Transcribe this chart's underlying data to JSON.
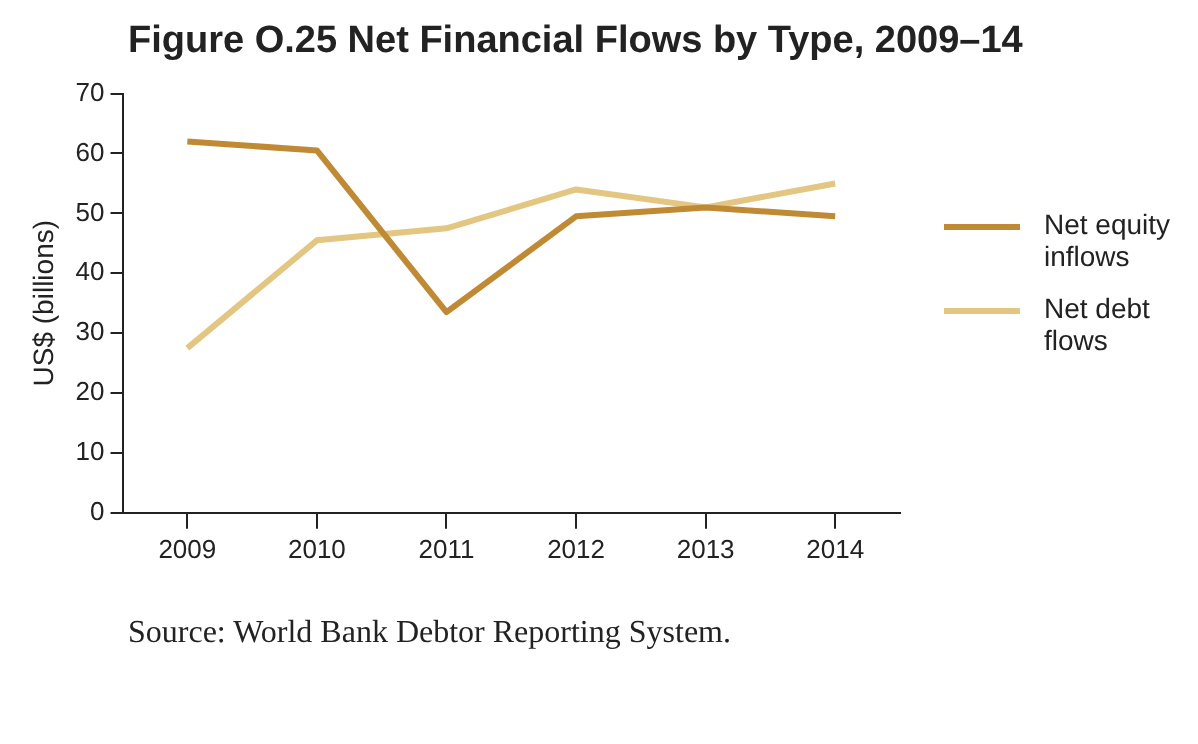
{
  "chart_data": {
    "type": "line",
    "title": "Figure O.25  Net Financial Flows by Type, 2009–14",
    "ylabel": "US$ (billions)",
    "categories": [
      "2009",
      "2010",
      "2011",
      "2012",
      "2013",
      "2014"
    ],
    "series": [
      {
        "name": "Net equity inflows",
        "color": "#c08a34",
        "values": [
          62,
          60.5,
          33.5,
          49.5,
          51,
          49.5
        ]
      },
      {
        "name": "Net debt flows",
        "color": "#e2c681",
        "values": [
          27.5,
          45.5,
          47.5,
          54,
          51,
          55
        ]
      }
    ],
    "ylim": [
      0,
      70
    ],
    "yticks": [
      0,
      10,
      20,
      30,
      40,
      50,
      60,
      70
    ],
    "grid": false,
    "legend": "right",
    "marker": "none",
    "annotations": [
      "Source: World Bank Debtor Reporting System."
    ]
  }
}
